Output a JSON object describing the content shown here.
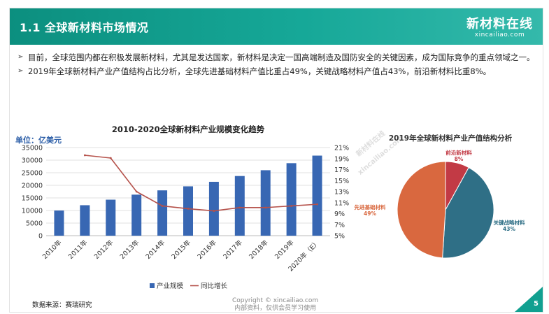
{
  "header": {
    "title": "1.1 全球新材料市场情况",
    "logo_main": "新材料在线",
    "logo_sub": "xincailiao.com"
  },
  "bullets": [
    "目前，全球范围内都在积极发展新材料，尤其是发达国家，新材料是决定一国高端制造及国防安全的关键因素，成为国际竞争的重点领域之一。",
    "2019年全球新材料产业产值结构占比分析，全球先进基础材料产值比重占49%，关键战略材料产值占43%，前沿新材料比重8%。"
  ],
  "watermarks": [
    "新材料在线",
    "xincailiao.com"
  ],
  "chart_data": [
    {
      "type": "bar",
      "title": "2010-2020全球新材料产业规模变化趋势",
      "ylabel": "单位：亿美元",
      "categories": [
        "2010年",
        "2011年",
        "2012年",
        "2013年",
        "2014年",
        "2015年",
        "2016年",
        "2017年",
        "2018年",
        "2019年",
        "2020年（E）"
      ],
      "ylim": [
        0,
        35000
      ],
      "yticks": [
        "0",
        "5000",
        "10000",
        "15000",
        "20000",
        "25000",
        "30000",
        "35000"
      ],
      "y2lim": [
        5,
        21
      ],
      "y2ticks": [
        "5%",
        "7%",
        "9%",
        "11%",
        "13%",
        "15%",
        "17%",
        "19%",
        "21%"
      ],
      "series": [
        {
          "name": "产业规模",
          "kind": "bar",
          "values": [
            10000,
            12100,
            14300,
            16300,
            18000,
            19600,
            21400,
            23700,
            26000,
            28800,
            31800
          ]
        },
        {
          "name": "同比增长",
          "kind": "line",
          "axis": "right",
          "values": [
            null,
            19.6,
            19.1,
            13.0,
            10.4,
            9.9,
            9.5,
            10.1,
            10.1,
            10.4,
            10.7
          ]
        }
      ],
      "legend_position": "bottom",
      "colors": {
        "bar": "#3867b3",
        "line": "#b5514a"
      }
    },
    {
      "type": "pie",
      "title": "2019年全球新材料产业产值结构分析",
      "slices": [
        {
          "label": "前沿新材料",
          "value": 8,
          "value_label": "8%",
          "color": "#c23a45"
        },
        {
          "label": "关键战略材料",
          "value": 43,
          "value_label": "43%",
          "color": "#2f6f86"
        },
        {
          "label": "先进基础材料",
          "value": 49,
          "value_label": "49%",
          "color": "#d9683f"
        }
      ]
    }
  ],
  "footer": {
    "source": "数据来源：赛瑞研究",
    "copyright_line1": "Copyright © xincailiao.com",
    "copyright_line2": "内部资料，仅供会员学习使用",
    "page_number": "5"
  }
}
